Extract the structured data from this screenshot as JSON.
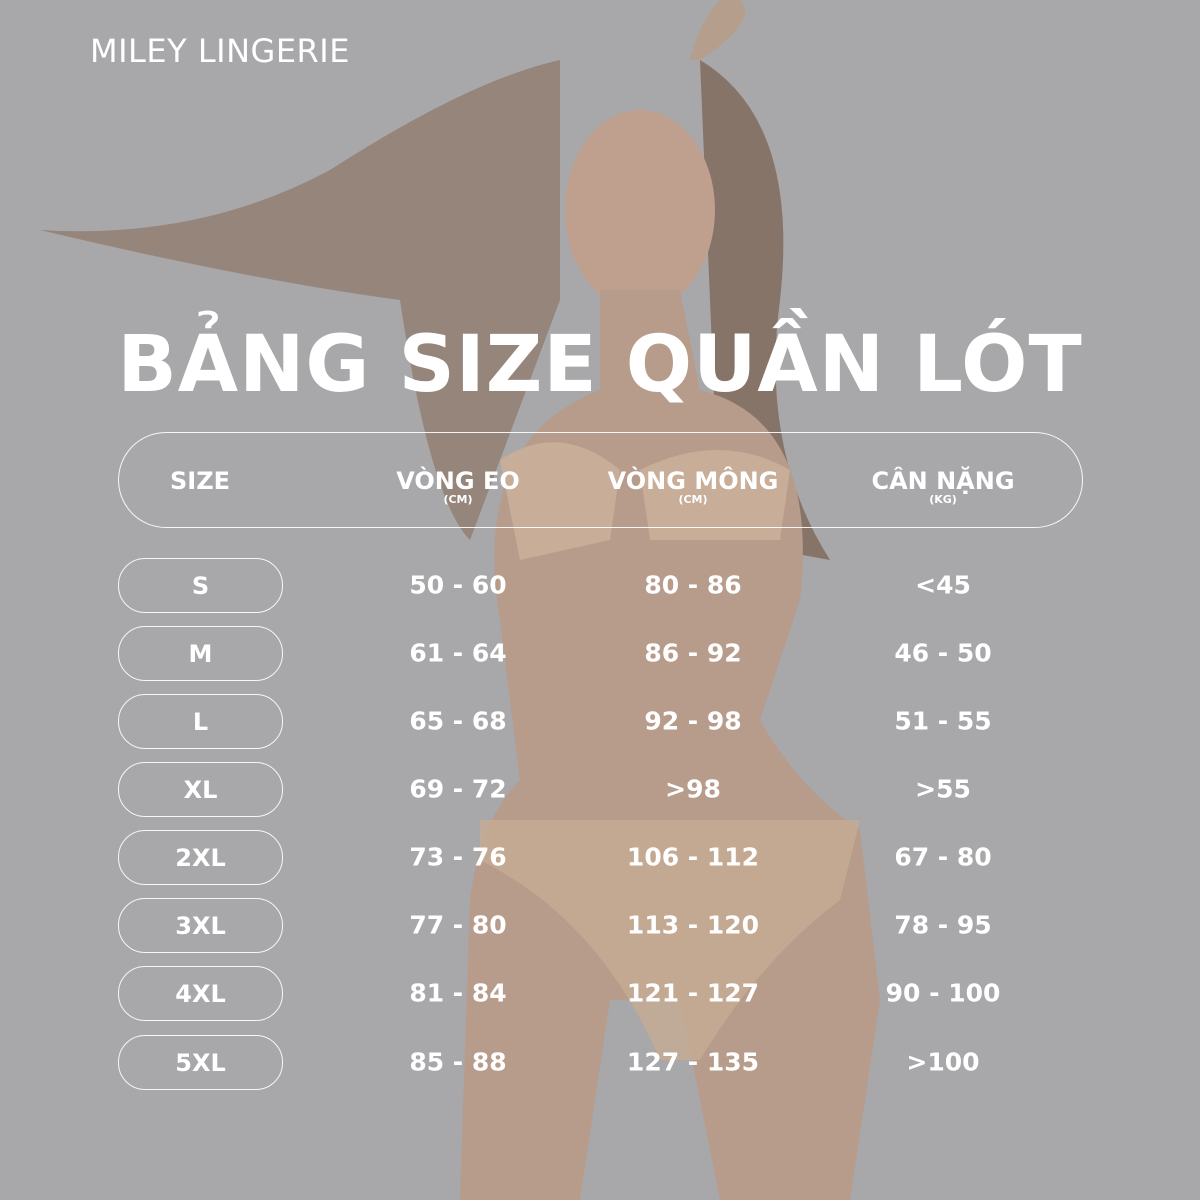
{
  "brand": "MILEY LINGERIE",
  "title": "BẢNG SIZE QUẦN LÓT",
  "colors": {
    "background": "#a8a7aa",
    "text": "#ffffff"
  },
  "headers": [
    {
      "label": "SIZE",
      "unit": ""
    },
    {
      "label": "VÒNG EO",
      "unit": "(CM)"
    },
    {
      "label": "VÒNG MÔNG",
      "unit": "(CM)"
    },
    {
      "label": "CÂN NẶNG",
      "unit": "(KG)"
    }
  ],
  "rows": [
    {
      "size": "S",
      "waist": "50 - 60",
      "hip": "80 - 86",
      "weight": "<45"
    },
    {
      "size": "M",
      "waist": "61 - 64",
      "hip": "86 - 92",
      "weight": "46 - 50"
    },
    {
      "size": "L",
      "waist": "65 - 68",
      "hip": "92 - 98",
      "weight": "51 - 55"
    },
    {
      "size": "XL",
      "waist": "69 - 72",
      "hip": ">98",
      "weight": ">55"
    },
    {
      "size": "2XL",
      "waist": "73 - 76",
      "hip": "106 - 112",
      "weight": "67 - 80"
    },
    {
      "size": "3XL",
      "waist": "77 - 80",
      "hip": "113 - 120",
      "weight": "78 - 95"
    },
    {
      "size": "4XL",
      "waist": "81 - 84",
      "hip": "121 - 127",
      "weight": "90 - 100"
    },
    {
      "size": "5XL",
      "waist": "85 - 88",
      "hip": "127 - 135",
      "weight": ">100"
    }
  ]
}
